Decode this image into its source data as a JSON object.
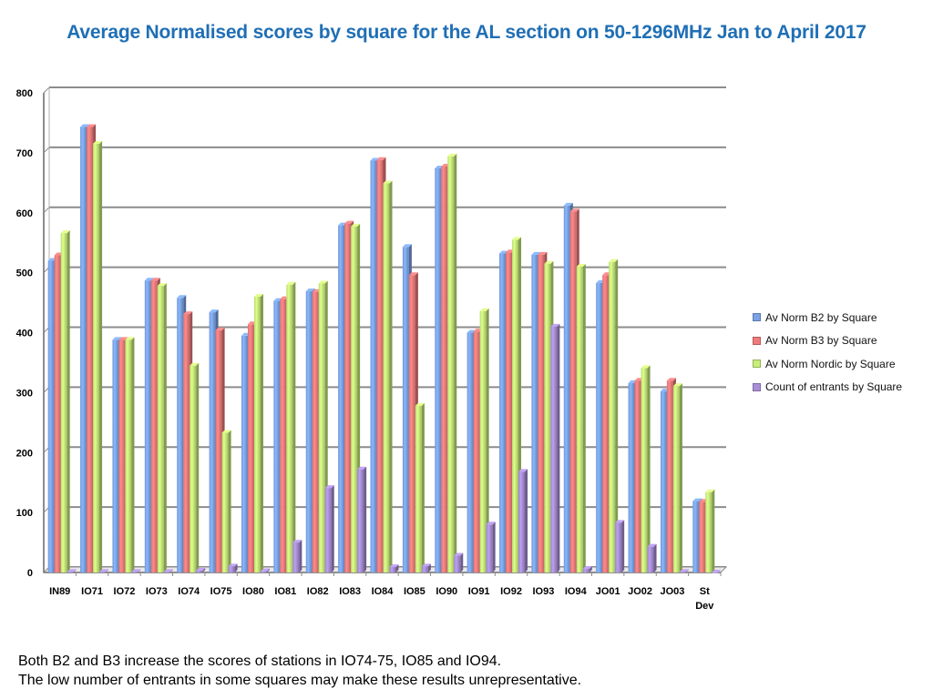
{
  "chart_data": {
    "type": "bar",
    "title": "Average Normalised scores by square for the AL section on 50-1296MHz Jan to April 2017",
    "categories": [
      "IN89",
      "IO71",
      "IO72",
      "IO73",
      "IO74",
      "IO75",
      "IO80",
      "IO81",
      "IO82",
      "IO83",
      "IO84",
      "IO85",
      "IO90",
      "IO91",
      "IO92",
      "IO93",
      "IO94",
      "JO01",
      "JO02",
      "JO03",
      "St Dev"
    ],
    "series": [
      {
        "name": "Av Norm B2 by Square",
        "color": "#7aa3e6",
        "values": [
          520,
          743,
          388,
          487,
          458,
          434,
          395,
          453,
          469,
          579,
          687,
          543,
          674,
          400,
          532,
          530,
          612,
          483,
          316,
          302,
          119
        ]
      },
      {
        "name": "Av Norm B3 by Square",
        "color": "#f07b7b",
        "values": [
          529,
          743,
          388,
          487,
          431,
          404,
          414,
          456,
          468,
          582,
          688,
          496,
          677,
          402,
          534,
          530,
          602,
          496,
          320,
          320,
          118
        ]
      },
      {
        "name": "Av Norm Nordic by Square",
        "color": "#c7ee7a",
        "values": [
          566,
          715,
          388,
          478,
          345,
          233,
          460,
          480,
          482,
          577,
          649,
          278,
          694,
          436,
          555,
          515,
          510,
          518,
          341,
          311,
          134
        ]
      },
      {
        "name": "Count of entrants by Square",
        "color": "#a98fd8",
        "values": [
          1,
          1,
          1,
          1,
          3,
          10,
          2,
          50,
          141,
          172,
          9,
          10,
          28,
          80,
          168,
          410,
          6,
          83,
          43,
          1,
          0
        ]
      }
    ],
    "ylim": [
      0,
      800
    ],
    "yticks": [
      0,
      100,
      200,
      300,
      400,
      500,
      600,
      700,
      800
    ],
    "grid": true,
    "legend": "right"
  },
  "notes": [
    "Both B2 and B3 increase the scores of stations in IO74-75, IO85 and IO94.",
    "The low number of entrants in some squares may make these results unrepresentative."
  ]
}
